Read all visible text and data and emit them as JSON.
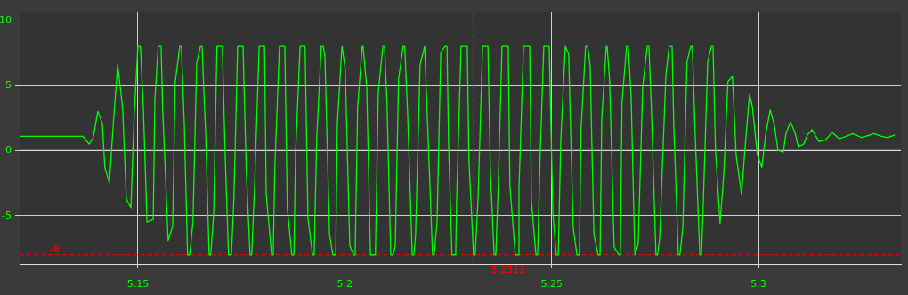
{
  "chart_data": {
    "type": "line",
    "x": [
      5.1214,
      5.1367,
      5.1382,
      5.1392,
      5.1403,
      5.1414,
      5.142,
      5.1431,
      5.144,
      5.1451,
      5.1463,
      5.1472,
      5.1483,
      5.1491,
      5.15,
      5.1506,
      5.1513,
      5.1522,
      5.1537,
      5.1541,
      5.1549,
      5.1556,
      5.156,
      5.1573,
      5.1584,
      5.159,
      5.1601,
      5.1605,
      5.1612,
      5.162,
      5.1625,
      5.1633,
      5.1642,
      5.1651,
      5.1655,
      5.1664,
      5.1672,
      5.1676,
      5.1683,
      5.1691,
      5.1704,
      5.1711,
      5.1719,
      5.1726,
      5.1732,
      5.1741,
      5.1754,
      5.1762,
      5.1771,
      5.1775,
      5.1782,
      5.1793,
      5.1806,
      5.181,
      5.1823,
      5.1827,
      5.1831,
      5.1842,
      5.1855,
      5.1861,
      5.1872,
      5.1877,
      5.1881,
      5.1892,
      5.1904,
      5.1911,
      5.1922,
      5.1926,
      5.1932,
      5.1943,
      5.1948,
      5.1952,
      5.1963,
      5.1971,
      5.1978,
      5.1982,
      5.1993,
      5.1995,
      5.2001,
      5.2012,
      5.2021,
      5.2025,
      5.2031,
      5.2042,
      5.2044,
      5.2053,
      5.2062,
      5.2074,
      5.2081,
      5.2092,
      5.2096,
      5.2102,
      5.2111,
      5.2117,
      5.2122,
      5.213,
      5.2141,
      5.2145,
      5.2152,
      5.2163,
      5.2167,
      5.2171,
      5.2182,
      5.2193,
      5.2195,
      5.2201,
      5.2212,
      5.2216,
      5.2223,
      5.2232,
      5.2242,
      5.2247,
      5.2251,
      5.2259,
      5.2268,
      5.227,
      5.2281,
      5.2296,
      5.23,
      5.2311,
      5.2315,
      5.2322,
      5.2333,
      5.2346,
      5.2352,
      5.2361,
      5.2365,
      5.2371,
      5.238,
      5.2395,
      5.2399,
      5.2412,
      5.2419,
      5.2421,
      5.2432,
      5.2447,
      5.2451,
      5.2462,
      5.2466,
      5.2472,
      5.2481,
      5.2494,
      5.2503,
      5.2511,
      5.2516,
      5.2522,
      5.2533,
      5.2541,
      5.2552,
      5.2561,
      5.2567,
      5.2571,
      5.2582,
      5.2587,
      5.2593,
      5.2602,
      5.2612,
      5.2617,
      5.2621,
      5.2632,
      5.2634,
      5.264,
      5.2651,
      5.2662,
      5.2666,
      5.267,
      5.2681,
      5.2685,
      5.2692,
      5.2701,
      5.2709,
      5.272,
      5.2731,
      5.2735,
      5.2741,
      5.2752,
      5.2756,
      5.2761,
      5.2776,
      5.2784,
      5.2791,
      5.2795,
      5.2806,
      5.281,
      5.2817,
      5.2827,
      5.2836,
      5.284,
      5.2847,
      5.2858,
      5.2862,
      5.2866,
      5.2877,
      5.2886,
      5.289,
      5.2896,
      5.2907,
      5.2916,
      5.2926,
      5.2937,
      5.2946,
      5.2959,
      5.2967,
      5.2978,
      5.2985,
      5.2997,
      5.3008,
      5.3017,
      5.3028,
      5.3038,
      5.3047,
      5.306,
      5.3066,
      5.3077,
      5.3088,
      5.3096,
      5.3109,
      5.3118,
      5.3129,
      5.3146,
      5.3161,
      5.3178,
      5.3195,
      5.3228,
      5.3249,
      5.3279,
      5.3297,
      5.3312,
      5.3329
    ],
    "series": [
      {
        "color": "#00ff00",
        "values": [
          1.1,
          1.1,
          0.5,
          1.0,
          3.0,
          2.1,
          -1.3,
          -2.5,
          1.8,
          6.6,
          3.3,
          -3.7,
          -4.4,
          2.8,
          8,
          8,
          3.4,
          -5.5,
          -5.3,
          3.9,
          8,
          8,
          3.1,
          -6.9,
          -5.8,
          5.2,
          8,
          8,
          2.1,
          -8,
          -8,
          -5.5,
          6.7,
          8,
          8,
          1.1,
          -8,
          -8,
          -4.9,
          8,
          8,
          -0.5,
          -8,
          -8,
          -3.7,
          8,
          8,
          -1.7,
          -8,
          -8,
          -2.7,
          8,
          8,
          -3.3,
          -8,
          -8,
          -1.2,
          8,
          8,
          -4.4,
          -8,
          -8,
          -0.2,
          8,
          8,
          -5.2,
          -8,
          -8,
          0.8,
          8,
          8,
          7.2,
          -6.4,
          -8,
          -8,
          2.0,
          8,
          8,
          6.3,
          -7.3,
          -8,
          -8,
          3.3,
          8,
          8,
          4.9,
          -8,
          -8,
          4.5,
          8,
          8,
          3.7,
          -8,
          -8,
          -7.3,
          5.5,
          8,
          8,
          2.7,
          -8,
          -8,
          -6.5,
          6.6,
          8,
          8,
          1.4,
          -8,
          -8,
          -5.5,
          7.5,
          8,
          8,
          0.3,
          -8,
          -8,
          -4.2,
          8,
          8,
          -0.6,
          -8,
          -8,
          -3.8,
          8,
          8,
          -1.7,
          -8,
          -8,
          -2.6,
          8,
          8,
          -2.7,
          -8,
          -8,
          -2.9,
          8,
          8,
          -3.9,
          -8,
          -8,
          -0.6,
          8,
          8,
          -4.8,
          -8,
          -8,
          0.8,
          8,
          7.4,
          -5.9,
          -8,
          -8,
          1.6,
          8,
          8,
          6.5,
          -6.4,
          -8,
          -8,
          2.5,
          8,
          8,
          5.4,
          -7.4,
          -8,
          -8,
          3.7,
          8,
          8,
          4.2,
          -8,
          -7.2,
          4.9,
          8,
          8,
          3.2,
          -8,
          -8,
          -6.7,
          5.8,
          8,
          8,
          2.1,
          -8,
          -8,
          -5.9,
          6.8,
          8,
          8,
          1.1,
          -8,
          -8,
          -4.5,
          6.8,
          8,
          8,
          0,
          -5.6,
          -1.8,
          5.3,
          5.7,
          -0.4,
          -3.4,
          0.1,
          4.3,
          3.4,
          -0.3,
          -1.3,
          1.2,
          3.1,
          2.0,
          0,
          -0.1,
          1.3,
          2.2,
          1.4,
          0.3,
          0.5,
          1.2,
          1.6,
          0.7,
          0.8,
          1.4,
          0.9,
          1.3,
          1.0,
          1.3,
          1.1,
          1.0,
          1.2
        ]
      }
    ],
    "xlim": [
      5.1214,
      5.3344
    ],
    "ylim": [
      -8.7,
      10.6
    ],
    "xticks": [
      5.15,
      5.2,
      5.25,
      5.3
    ],
    "yticks": [
      -5,
      0,
      5,
      10
    ],
    "grid": true,
    "legend": false,
    "marker": "none",
    "line_style": "solid",
    "ref_lines": [
      {
        "axis": "y",
        "value": 0,
        "color": "#d8d8d8",
        "line_style": "solid"
      },
      {
        "axis": "y",
        "value": 0.2,
        "color": "#2a2ab0",
        "line_style": "solid"
      },
      {
        "axis": "y",
        "value": -8,
        "label": "-8",
        "color": "#ff0000",
        "line_style": "dashed"
      },
      {
        "axis": "x",
        "value": 5.2311,
        "label": "5.2311",
        "color": "#ff0000",
        "line_style": "dashed"
      }
    ]
  }
}
